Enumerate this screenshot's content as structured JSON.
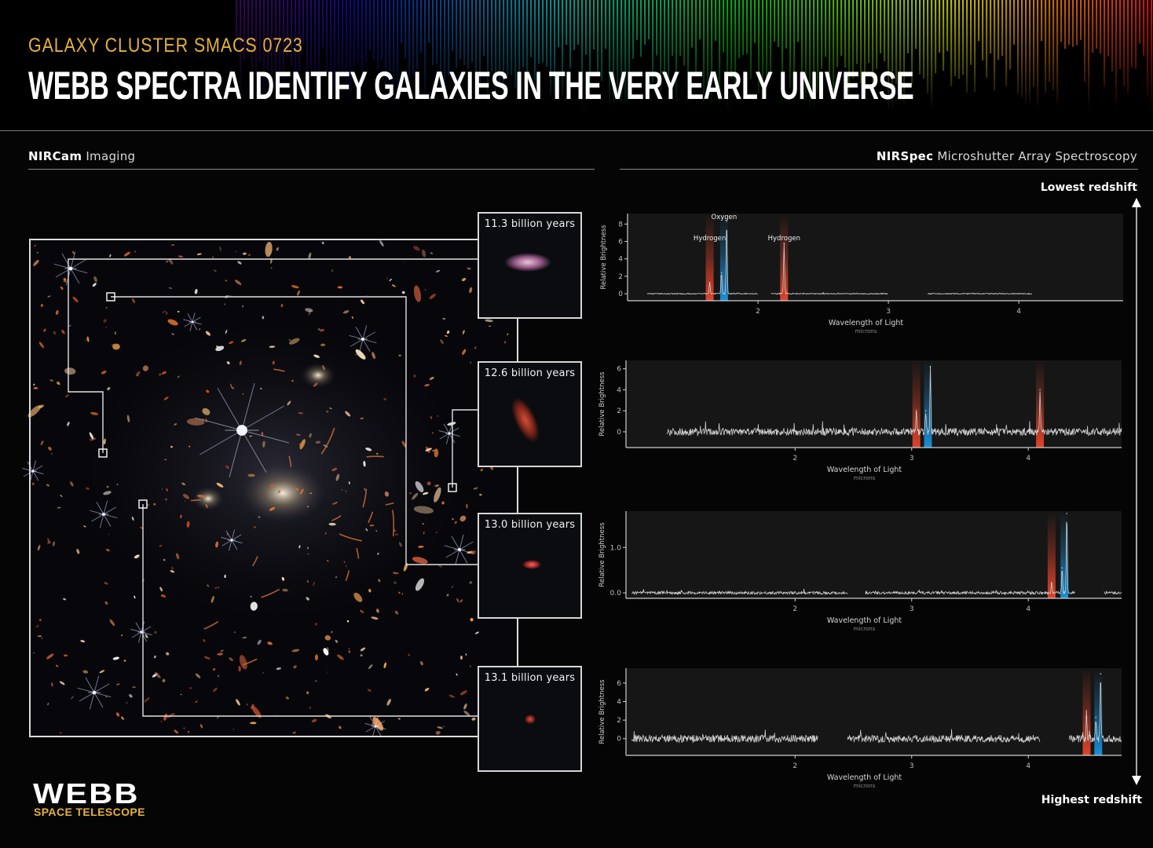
{
  "header": {
    "subtitle": "GALAXY CLUSTER SMACS 0723",
    "title": "WEBB SPECTRA IDENTIFY GALAXIES IN THE VERY EARLY UNIVERSE"
  },
  "left_section": {
    "label_bold": "NIRCam",
    "label_rest": " Imaging"
  },
  "right_section": {
    "label_bold": "NIRSpec",
    "label_rest": " Microshutter Array Spectroscopy"
  },
  "thumbnails": [
    {
      "label": "11.3 billion years"
    },
    {
      "label": "12.6 billion years"
    },
    {
      "label": "13.0 billion years"
    },
    {
      "label": "13.1 billion years"
    }
  ],
  "redshift_axis": {
    "top": "Lowest redshift",
    "bottom": "Highest redshift"
  },
  "logo": {
    "name": "WEBB",
    "sub": "SPACE TELESCOPE"
  },
  "colors": {
    "accent": "#e4b23c",
    "hydrogen": "#e0442a",
    "oxygen": "#1b8fd6",
    "trace": "#cfcfcf"
  },
  "chart_data": [
    {
      "type": "line",
      "xlabel": "Wavelength of Light",
      "xunit": "microns",
      "ylabel": "Relative Brightness",
      "xlim": [
        1.0,
        4.8
      ],
      "ylim": [
        -0.8,
        9.2
      ],
      "xticks": [
        2,
        3,
        4
      ],
      "yticks": [
        0,
        2,
        4,
        6,
        8
      ],
      "ytick_labels": [
        "0",
        "2",
        "4",
        "6",
        "8"
      ],
      "noise": 0.06,
      "segments": [
        [
          1.15,
          2.0
        ],
        [
          2.1,
          3.0
        ],
        [
          3.3,
          4.1
        ]
      ],
      "peaks": [
        {
          "x": 1.63,
          "y": 1.3,
          "line": "hydrogen"
        },
        {
          "x": 1.72,
          "y": 2.4,
          "line": "oxygen"
        },
        {
          "x": 1.76,
          "y": 8.3,
          "line": "oxygen"
        },
        {
          "x": 2.2,
          "y": 5.8,
          "line": "hydrogen"
        }
      ],
      "bands": [
        {
          "x": 1.63,
          "line": "hydrogen",
          "label": "Hydrogen"
        },
        {
          "x": 1.74,
          "line": "oxygen",
          "label": "Oxygen"
        },
        {
          "x": 2.2,
          "line": "hydrogen",
          "label": "Hydrogen"
        }
      ]
    },
    {
      "type": "line",
      "xlabel": "Wavelength of Light",
      "xunit": "microns",
      "ylabel": "Relative Brightness",
      "xlim": [
        0.55,
        4.8
      ],
      "ylim": [
        -1.5,
        6.8
      ],
      "xticks": [
        2,
        3,
        4
      ],
      "yticks": [
        0,
        2,
        4,
        6
      ],
      "ytick_labels": [
        "0",
        "2",
        "4",
        "6"
      ],
      "noise": 0.35,
      "segments": [
        [
          0.9,
          4.8
        ]
      ],
      "peaks": [
        {
          "x": 3.04,
          "y": 1.8,
          "line": "hydrogen"
        },
        {
          "x": 3.12,
          "y": 2.0,
          "line": "oxygen"
        },
        {
          "x": 3.16,
          "y": 6.2,
          "line": "oxygen"
        },
        {
          "x": 4.1,
          "y": 4.0,
          "line": "hydrogen"
        }
      ],
      "bands": [
        {
          "x": 3.04,
          "line": "hydrogen"
        },
        {
          "x": 3.14,
          "line": "oxygen"
        },
        {
          "x": 4.1,
          "line": "hydrogen"
        }
      ]
    },
    {
      "type": "line",
      "xlabel": "Wavelength of Light",
      "xunit": "microns",
      "ylabel": "Relative Brightness",
      "xlim": [
        0.55,
        4.8
      ],
      "ylim": [
        -0.12,
        1.8
      ],
      "xticks": [
        2,
        3,
        4
      ],
      "yticks": [
        0.0,
        1.0
      ],
      "ytick_labels": [
        "0.0",
        "1.0"
      ],
      "noise": 0.03,
      "segments": [
        [
          0.6,
          2.45
        ],
        [
          2.6,
          4.4
        ],
        [
          4.65,
          4.8
        ]
      ],
      "peaks": [
        {
          "x": 4.2,
          "y": 0.22,
          "line": "hydrogen"
        },
        {
          "x": 4.29,
          "y": 0.55,
          "line": "oxygen"
        },
        {
          "x": 4.33,
          "y": 1.75,
          "line": "oxygen"
        }
      ],
      "bands": [
        {
          "x": 4.2,
          "line": "hydrogen"
        },
        {
          "x": 4.31,
          "line": "oxygen"
        }
      ]
    },
    {
      "type": "line",
      "xlabel": "Wavelength of Light",
      "xunit": "microns",
      "ylabel": "Relative Brightness",
      "xlim": [
        0.55,
        4.8
      ],
      "ylim": [
        -1.8,
        7.6
      ],
      "xticks": [
        2,
        3,
        4
      ],
      "yticks": [
        0,
        2,
        4,
        6
      ],
      "ytick_labels": [
        "0",
        "2",
        "4",
        "6"
      ],
      "noise": 0.4,
      "segments": [
        [
          0.6,
          2.2
        ],
        [
          2.45,
          4.1
        ],
        [
          4.35,
          4.8
        ]
      ],
      "peaks": [
        {
          "x": 4.5,
          "y": 2.3,
          "line": "hydrogen"
        },
        {
          "x": 4.58,
          "y": 2.3,
          "line": "oxygen"
        },
        {
          "x": 4.62,
          "y": 7.0,
          "line": "oxygen"
        }
      ],
      "bands": [
        {
          "x": 4.5,
          "line": "hydrogen"
        },
        {
          "x": 4.6,
          "line": "oxygen"
        }
      ]
    }
  ]
}
